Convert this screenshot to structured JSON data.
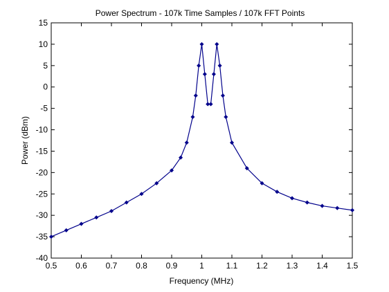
{
  "chart_data": {
    "type": "line",
    "title": "Power Spectrum - 107k Time Samples / 107k FFT Points",
    "xlabel": "Frequency (MHz)",
    "ylabel": "Power (dBm)",
    "xlim": [
      0.5,
      1.5
    ],
    "ylim": [
      -40,
      15
    ],
    "x_ticks": [
      0.5,
      0.6,
      0.7,
      0.8,
      0.9,
      1.0,
      1.1,
      1.2,
      1.3,
      1.4,
      1.5
    ],
    "x_tick_labels": [
      "0.5",
      "0.6",
      "0.7",
      "0.8",
      "0.9",
      "1",
      "1.1",
      "1.2",
      "1.3",
      "1.4",
      "1.5"
    ],
    "y_ticks": [
      15,
      10,
      5,
      0,
      -5,
      -10,
      -15,
      -20,
      -25,
      -30,
      -35,
      -40
    ],
    "y_tick_labels": [
      "15",
      "10",
      "5",
      "0",
      "-5",
      "-10",
      "-15",
      "-20",
      "-25",
      "-30",
      "-35",
      "-40"
    ],
    "grid": false,
    "marker": "diamond",
    "series_color": "#00008b",
    "series": [
      {
        "x": [
          0.5,
          0.55,
          0.6,
          0.65,
          0.7,
          0.75,
          0.8,
          0.85,
          0.9,
          0.93,
          0.95,
          0.97,
          0.98,
          0.99,
          1.0,
          1.01,
          1.02,
          1.03,
          1.04,
          1.05,
          1.06,
          1.07,
          1.08,
          1.1,
          1.15,
          1.2,
          1.25,
          1.3,
          1.35,
          1.4,
          1.45,
          1.5
        ],
        "y": [
          -35,
          -33.5,
          -32,
          -30.5,
          -29,
          -27,
          -25,
          -22.5,
          -19.5,
          -16.5,
          -13,
          -7,
          -2,
          5,
          10,
          3,
          -4,
          -4,
          3,
          10,
          5,
          -2,
          -7,
          -13,
          -19,
          -22.5,
          -24.5,
          -26,
          -27,
          -27.8,
          -28.3,
          -28.8
        ]
      }
    ]
  }
}
